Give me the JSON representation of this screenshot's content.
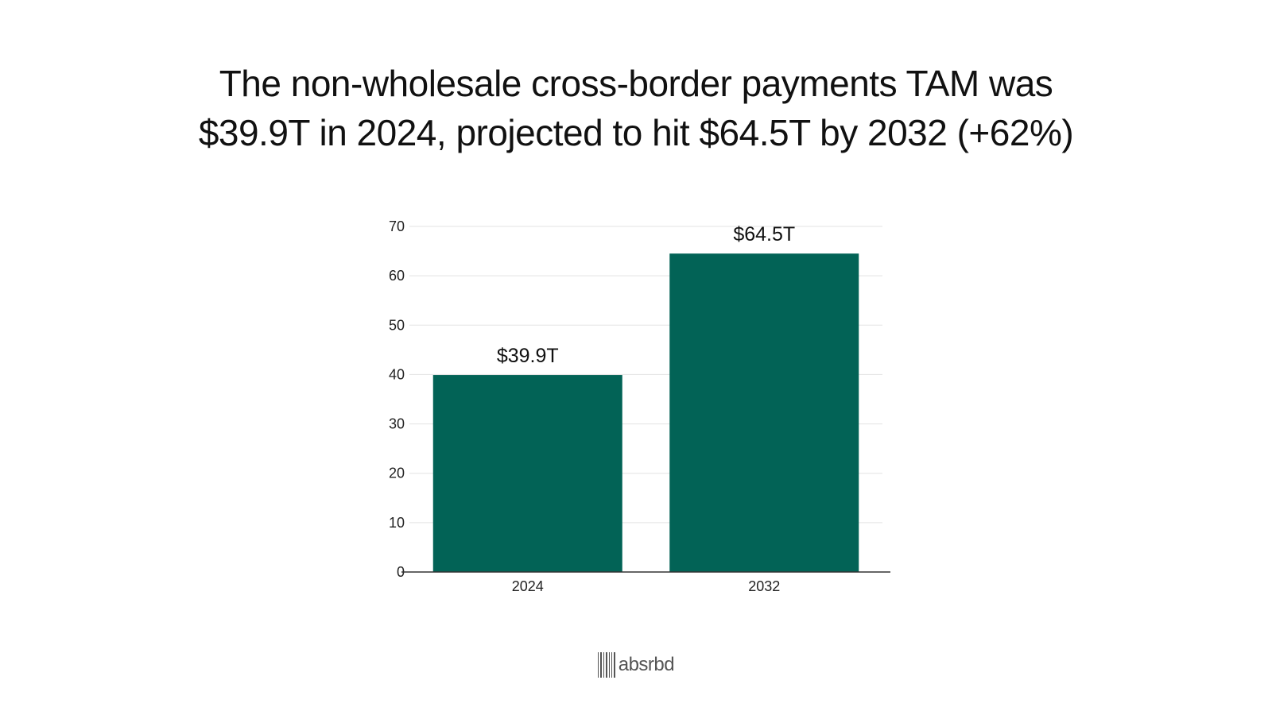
{
  "title_line1": "The non-wholesale cross-border payments TAM was",
  "title_line2": "$39.9T in 2024, projected to hit $64.5T by 2032 (+62%)",
  "chart_data": {
    "type": "bar",
    "title": "The non-wholesale cross-border payments TAM was $39.9T in 2024, projected to hit $64.5T by 2032 (+62%)",
    "categories": [
      "2024",
      "2032"
    ],
    "values": [
      39.9,
      64.5
    ],
    "data_labels": [
      "$39.9T",
      "$64.5T"
    ],
    "y_ticks": [
      "0",
      "10",
      "20",
      "30",
      "40",
      "50",
      "60",
      "70"
    ],
    "ylim": [
      0,
      70
    ],
    "grid": true,
    "bar_color": "#026356",
    "xlabel": "",
    "ylabel": ""
  },
  "logo": {
    "text": "absrbd",
    "icon": "barcode-icon"
  }
}
